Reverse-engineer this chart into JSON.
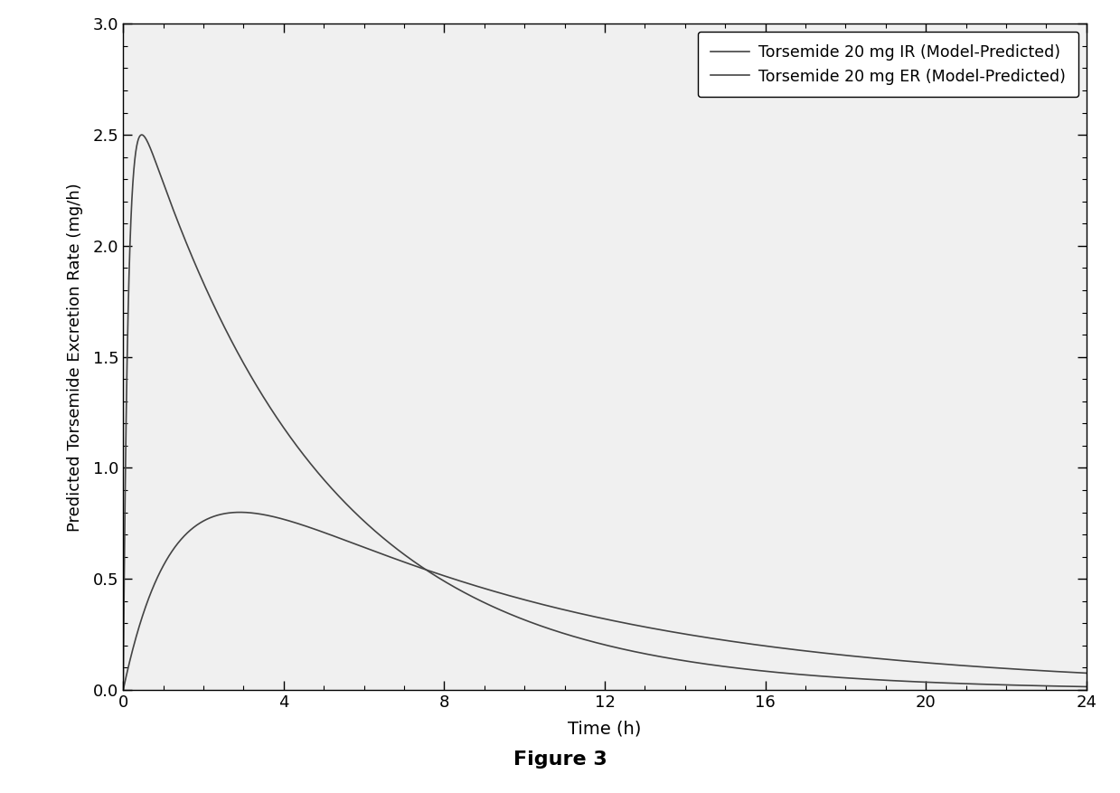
{
  "title": "Figure 3",
  "xlabel": "Time (h)",
  "ylabel": "Predicted Torsemide Excretion Rate (mg/h)",
  "xlim": [
    0,
    24
  ],
  "ylim": [
    0.0,
    3.0
  ],
  "xticks": [
    0,
    4,
    8,
    12,
    16,
    20,
    24
  ],
  "yticks": [
    0.0,
    0.5,
    1.0,
    1.5,
    2.0,
    2.5,
    3.0
  ],
  "legend_ir": "Torsemide 20 mg IR (Model-Predicted)",
  "legend_er": "Torsemide 20 mg ER (Model-Predicted)",
  "line_color": "#444444",
  "background_color": "#ffffff",
  "ka_ir": 8.0,
  "ke_ir": 0.22,
  "peak_ir": 2.5,
  "ka_er": 0.75,
  "ke_er": 0.12,
  "peak_er": 0.8
}
